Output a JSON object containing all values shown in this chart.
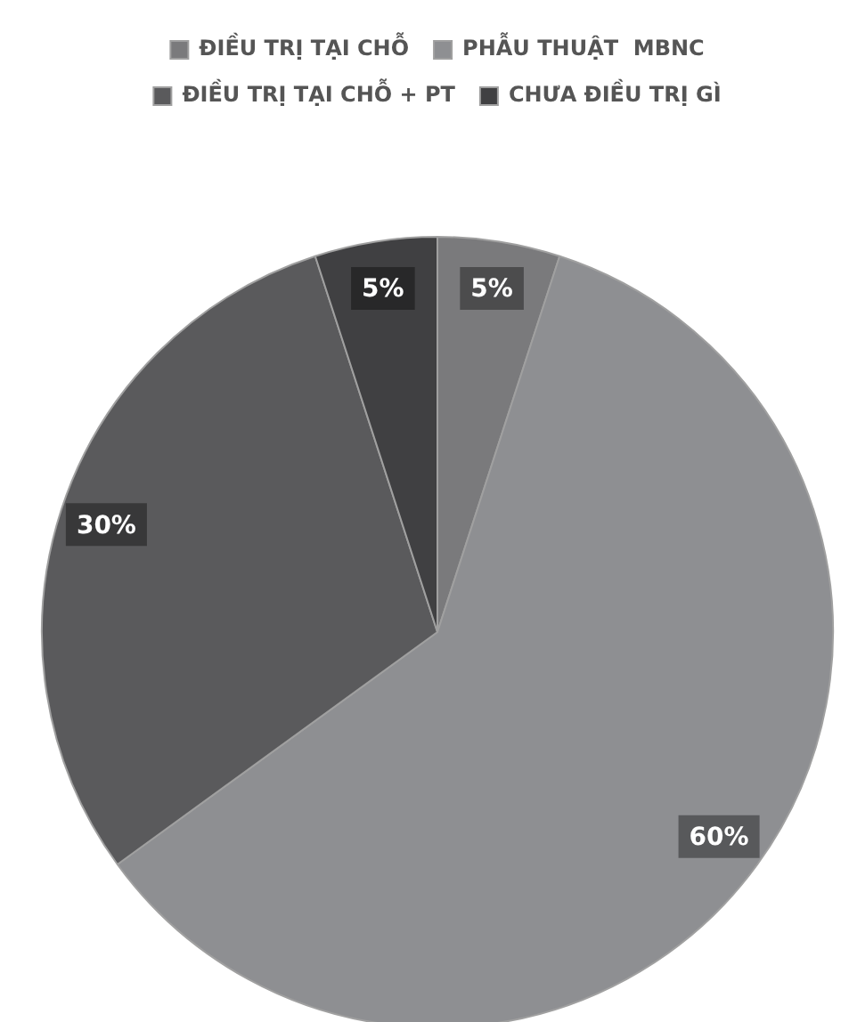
{
  "chart_data": {
    "type": "pie",
    "categories": [
      "ĐIỀU TRỊ TẠI CHỖ",
      "PHẪU THUẬT  MBNC",
      "ĐIỀU TRỊ TẠI CHỖ + PT",
      "CHƯA ĐIỀU TRỊ GÌ"
    ],
    "values": [
      5,
      60,
      30,
      5
    ],
    "colors": [
      "#7a7a7c",
      "#8e8f92",
      "#5a5a5c",
      "#404042"
    ],
    "value_labels": [
      "5%",
      "60%",
      "30%",
      "5%"
    ],
    "legend": "top"
  }
}
